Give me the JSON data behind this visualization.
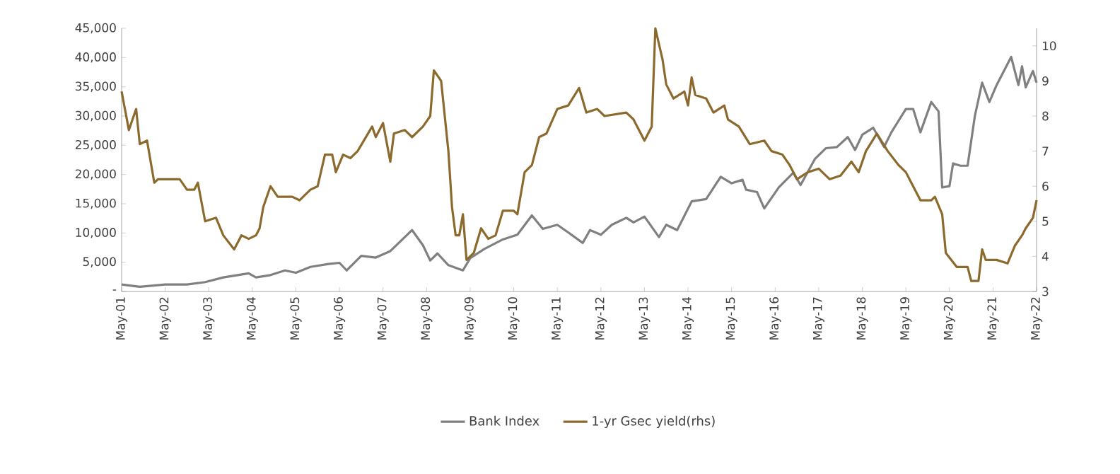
{
  "chart_data": {
    "type": "line",
    "xlim": [
      "2001-05",
      "2022-05"
    ],
    "xticks": [
      {
        "value": "2001-05",
        "label": "May-01"
      },
      {
        "value": "2002-05",
        "label": "May-02"
      },
      {
        "value": "2003-05",
        "label": "May-03"
      },
      {
        "value": "2004-05",
        "label": "May-04"
      },
      {
        "value": "2005-05",
        "label": "May-05"
      },
      {
        "value": "2006-05",
        "label": "May-06"
      },
      {
        "value": "2007-05",
        "label": "May-07"
      },
      {
        "value": "2008-05",
        "label": "May-08"
      },
      {
        "value": "2009-05",
        "label": "May-09"
      },
      {
        "value": "2010-05",
        "label": "May-10"
      },
      {
        "value": "2011-05",
        "label": "May-11"
      },
      {
        "value": "2012-05",
        "label": "May-12"
      },
      {
        "value": "2013-05",
        "label": "May-13"
      },
      {
        "value": "2014-05",
        "label": "May-14"
      },
      {
        "value": "2015-05",
        "label": "May-15"
      },
      {
        "value": "2016-05",
        "label": "May-16"
      },
      {
        "value": "2017-05",
        "label": "May-17"
      },
      {
        "value": "2018-05",
        "label": "May-18"
      },
      {
        "value": "2019-05",
        "label": "May-19"
      },
      {
        "value": "2020-05",
        "label": "May-20"
      },
      {
        "value": "2021-05",
        "label": "May-21"
      },
      {
        "value": "2022-05",
        "label": "May-22"
      }
    ],
    "ylim": [
      0,
      45000
    ],
    "yticks": [
      {
        "value": 0,
        "label": "-"
      },
      {
        "value": 5000,
        "label": "5,000"
      },
      {
        "value": 10000,
        "label": "10,000"
      },
      {
        "value": 15000,
        "label": "15,000"
      },
      {
        "value": 20000,
        "label": "20,000"
      },
      {
        "value": 25000,
        "label": "25,000"
      },
      {
        "value": 30000,
        "label": "30,000"
      },
      {
        "value": 35000,
        "label": "35,000"
      },
      {
        "value": 40000,
        "label": "40,000"
      },
      {
        "value": 45000,
        "label": "45,000"
      }
    ],
    "y2lim": [
      3,
      10.5
    ],
    "y2ticks": [
      3,
      4,
      5,
      6,
      7,
      8,
      9,
      10
    ],
    "legend": "bottom",
    "series": [
      {
        "name": "Bank Index",
        "color": "#808080",
        "x": [
          "2001-05",
          "2001-10",
          "2002-05",
          "2002-11",
          "2003-04",
          "2003-09",
          "2004-04",
          "2004-06",
          "2004-10",
          "2005-02",
          "2005-05",
          "2005-09",
          "2006-02",
          "2006-05",
          "2006-07",
          "2006-11",
          "2007-03",
          "2007-07",
          "2007-11",
          "2008-01",
          "2008-04",
          "2008-06",
          "2008-08",
          "2008-11",
          "2009-03",
          "2009-05",
          "2009-09",
          "2010-02",
          "2010-06",
          "2010-10",
          "2011-01",
          "2011-05",
          "2011-08",
          "2011-12",
          "2012-02",
          "2012-05",
          "2012-08",
          "2012-12",
          "2013-02",
          "2013-05",
          "2013-09",
          "2013-11",
          "2014-02",
          "2014-06",
          "2014-10",
          "2015-02",
          "2015-05",
          "2015-08",
          "2015-09",
          "2015-12",
          "2016-02",
          "2016-06",
          "2016-10",
          "2016-12",
          "2017-04",
          "2017-07",
          "2017-10",
          "2018-01",
          "2018-03",
          "2018-05",
          "2018-08",
          "2018-11",
          "2019-01",
          "2019-05",
          "2019-07",
          "2019-09",
          "2019-12",
          "2020-02",
          "2020-03",
          "2020-05",
          "2020-06",
          "2020-08",
          "2020-10",
          "2020-12",
          "2021-02",
          "2021-04",
          "2021-06",
          "2021-10",
          "2021-12",
          "2022-01",
          "2022-02",
          "2022-04",
          "2022-05"
        ],
        "values": [
          1200,
          800,
          1200,
          1200,
          1600,
          2400,
          3100,
          2400,
          2800,
          3600,
          3200,
          4200,
          4700,
          4900,
          3600,
          6100,
          5800,
          6900,
          9300,
          10500,
          7900,
          5300,
          6500,
          4500,
          3600,
          5700,
          7300,
          8900,
          9700,
          13000,
          10700,
          11400,
          10100,
          8300,
          10500,
          9700,
          11400,
          12600,
          11800,
          12800,
          9300,
          11400,
          10500,
          15400,
          15800,
          19600,
          18500,
          19100,
          17400,
          17000,
          14200,
          17800,
          20300,
          18200,
          22700,
          24500,
          24700,
          26400,
          24200,
          26800,
          28000,
          24700,
          27200,
          31200,
          31200,
          27200,
          32400,
          30800,
          17800,
          18000,
          21900,
          21500,
          21500,
          30000,
          35700,
          32400,
          35300,
          40100,
          35300,
          38500,
          34900,
          37700,
          35700
        ]
      },
      {
        "name": "1-yr Gsec yield(rhs)",
        "color": "#8c6a2e",
        "axis": "y2",
        "x": [
          "2001-05",
          "2001-07",
          "2001-09",
          "2001-10",
          "2001-12",
          "2002-02",
          "2002-03",
          "2002-09",
          "2002-11",
          "2003-01",
          "2003-02",
          "2003-04",
          "2003-07",
          "2003-09",
          "2003-12",
          "2004-02",
          "2004-04",
          "2004-06",
          "2004-07",
          "2004-08",
          "2004-10",
          "2004-12",
          "2005-04",
          "2005-06",
          "2005-09",
          "2005-11",
          "2006-01",
          "2006-03",
          "2006-04",
          "2006-06",
          "2006-08",
          "2006-10",
          "2007-02",
          "2007-03",
          "2007-05",
          "2007-07",
          "2007-08",
          "2007-11",
          "2008-01",
          "2008-04",
          "2008-06",
          "2008-07",
          "2008-09",
          "2008-11",
          "2008-12",
          "2009-01",
          "2009-02",
          "2009-03",
          "2009-04",
          "2009-06",
          "2009-08",
          "2009-10",
          "2009-12",
          "2010-02",
          "2010-05",
          "2010-06",
          "2010-08",
          "2010-10",
          "2010-12",
          "2011-02",
          "2011-05",
          "2011-08",
          "2011-11",
          "2012-01",
          "2012-04",
          "2012-06",
          "2012-12",
          "2013-02",
          "2013-05",
          "2013-07",
          "2013-08",
          "2013-10",
          "2013-11",
          "2014-01",
          "2014-04",
          "2014-05",
          "2014-06",
          "2014-07",
          "2014-10",
          "2014-12",
          "2015-03",
          "2015-04",
          "2015-07",
          "2015-10",
          "2016-02",
          "2016-04",
          "2016-07",
          "2016-09",
          "2016-11",
          "2017-02",
          "2017-05",
          "2017-08",
          "2017-11",
          "2018-02",
          "2018-04",
          "2018-06",
          "2018-09",
          "2018-12",
          "2019-03",
          "2019-05",
          "2019-07",
          "2019-09",
          "2019-12",
          "2020-01",
          "2020-03",
          "2020-04",
          "2020-07",
          "2020-10",
          "2020-11",
          "2021-01",
          "2021-02",
          "2021-03",
          "2021-06",
          "2021-09",
          "2021-11",
          "2022-01",
          "2022-02",
          "2022-04",
          "2022-05"
        ],
        "values": [
          8.7,
          7.6,
          8.2,
          7.2,
          7.3,
          6.1,
          6.2,
          6.2,
          5.9,
          5.9,
          6.1,
          5.0,
          5.1,
          4.6,
          4.2,
          4.6,
          4.5,
          4.6,
          4.8,
          5.4,
          6.0,
          5.7,
          5.7,
          5.6,
          5.9,
          6.0,
          6.9,
          6.9,
          6.4,
          6.9,
          6.8,
          7.0,
          7.7,
          7.4,
          7.8,
          6.7,
          7.5,
          7.6,
          7.4,
          7.7,
          8.0,
          9.3,
          9.0,
          7.0,
          5.4,
          4.6,
          4.6,
          5.2,
          3.9,
          4.1,
          4.8,
          4.5,
          4.6,
          5.3,
          5.3,
          5.2,
          6.4,
          6.6,
          7.4,
          7.5,
          8.2,
          8.3,
          8.8,
          8.1,
          8.2,
          8.0,
          8.1,
          7.9,
          7.3,
          7.7,
          10.5,
          9.6,
          8.9,
          8.5,
          8.7,
          8.3,
          9.1,
          8.6,
          8.5,
          8.1,
          8.3,
          7.9,
          7.7,
          7.2,
          7.3,
          7.0,
          6.9,
          6.6,
          6.2,
          6.4,
          6.5,
          6.2,
          6.3,
          6.7,
          6.4,
          7.0,
          7.5,
          7.0,
          6.6,
          6.4,
          6.0,
          5.6,
          5.6,
          5.7,
          5.2,
          4.1,
          3.7,
          3.7,
          3.3,
          3.3,
          4.2,
          3.9,
          3.9,
          3.8,
          4.3,
          4.6,
          4.8,
          5.1,
          5.6
        ]
      }
    ]
  }
}
